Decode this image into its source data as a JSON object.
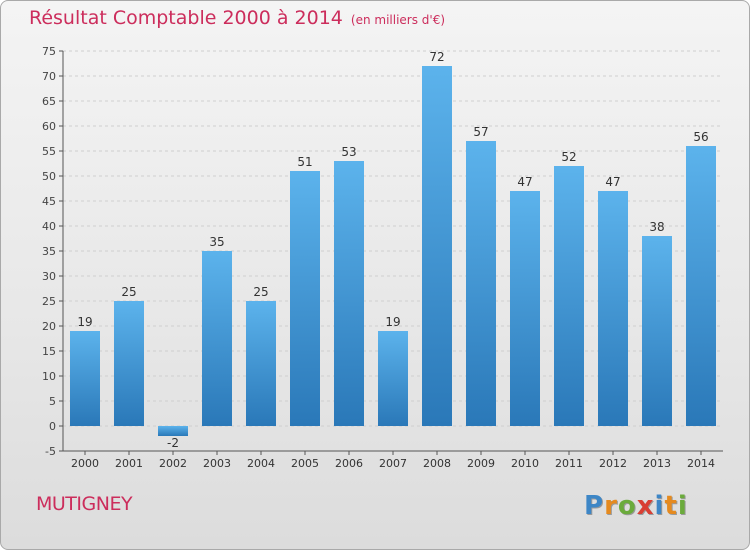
{
  "chart_data": {
    "type": "bar",
    "title": "Résultat Comptable 2000 à 2014",
    "subtitle": "(en milliers d'€)",
    "categories": [
      "2000",
      "2001",
      "2002",
      "2003",
      "2004",
      "2005",
      "2006",
      "2007",
      "2008",
      "2009",
      "2010",
      "2011",
      "2012",
      "2013",
      "2014"
    ],
    "values": [
      19,
      25,
      -2,
      35,
      25,
      51,
      53,
      19,
      72,
      57,
      47,
      52,
      47,
      38,
      56
    ],
    "ylim": [
      -5,
      75
    ],
    "yticks": [
      -5,
      0,
      5,
      10,
      15,
      20,
      25,
      30,
      35,
      40,
      45,
      50,
      55,
      60,
      65,
      70,
      75
    ],
    "grid": true,
    "bar_color": "#3f9be0",
    "title_color": "#cc2d5c"
  },
  "footer": {
    "place": "MUTIGNEY",
    "brand_letters": [
      {
        "ch": "P",
        "color": "#3d86c6"
      },
      {
        "ch": "r",
        "color": "#e58a1f"
      },
      {
        "ch": "o",
        "color": "#6bab3c"
      },
      {
        "ch": "x",
        "color": "#d93f34"
      },
      {
        "ch": "i",
        "color": "#3d86c6"
      },
      {
        "ch": "t",
        "color": "#e58a1f"
      },
      {
        "ch": "i",
        "color": "#6bab3c"
      }
    ]
  }
}
